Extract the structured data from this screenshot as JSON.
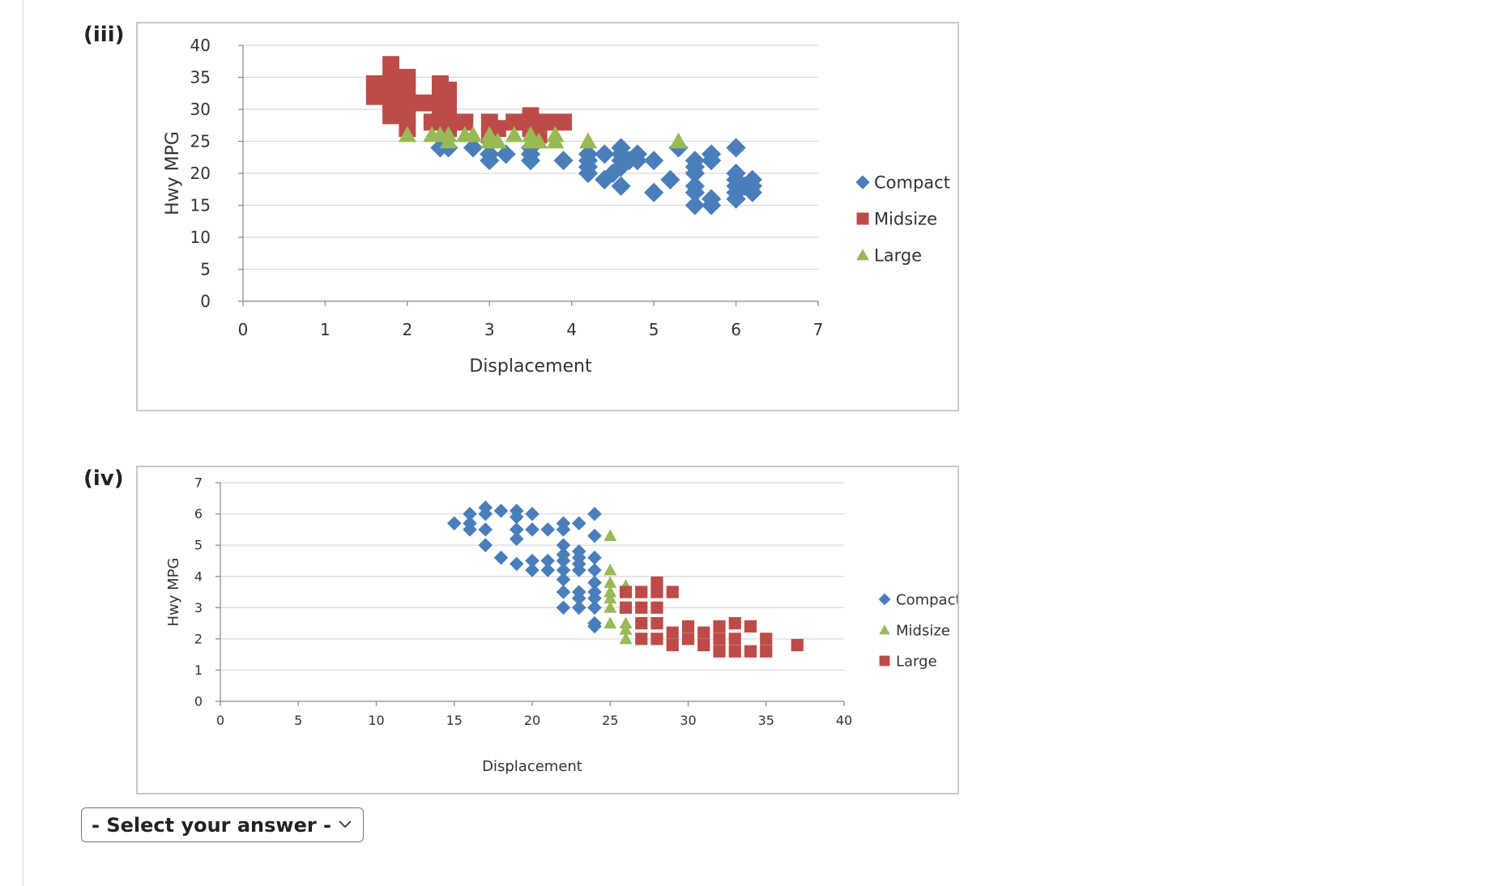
{
  "parts": [
    {
      "label": "(iii)"
    },
    {
      "label": "(iv)"
    }
  ],
  "answer_select": {
    "placeholder": "- Select your answer -",
    "icon": "chevron-down-icon"
  },
  "colors": {
    "compact": "#4a7ebb",
    "midsize_red": "#be4b48",
    "green": "#98b954",
    "grid": "#d9d9d9",
    "axis": "#868686"
  },
  "chart_data": [
    {
      "type": "scatter",
      "title": "",
      "xlabel": "Displacement",
      "ylabel": "Hwy MPG",
      "xlim": [
        0,
        7
      ],
      "ylim": [
        0,
        40
      ],
      "xticks": [
        "0",
        "1",
        "2",
        "3",
        "4",
        "5",
        "6",
        "7"
      ],
      "yticks": [
        "0",
        "5",
        "10",
        "15",
        "20",
        "25",
        "30",
        "35",
        "40"
      ],
      "legend_position": "right",
      "series": [
        {
          "name": "Compact",
          "marker": "diamond",
          "color": "#4a7ebb",
          "points": [
            [
              2.4,
              24
            ],
            [
              2.5,
              24
            ],
            [
              2.8,
              24
            ],
            [
              3.0,
              22
            ],
            [
              3.0,
              23
            ],
            [
              3.2,
              23
            ],
            [
              3.5,
              22
            ],
            [
              3.5,
              23
            ],
            [
              3.5,
              24
            ],
            [
              3.9,
              22
            ],
            [
              4.2,
              20
            ],
            [
              4.2,
              21
            ],
            [
              4.2,
              22
            ],
            [
              4.2,
              23
            ],
            [
              4.4,
              19
            ],
            [
              4.4,
              23
            ],
            [
              4.5,
              20
            ],
            [
              4.6,
              21
            ],
            [
              4.6,
              22
            ],
            [
              4.6,
              23
            ],
            [
              4.6,
              24
            ],
            [
              4.6,
              18
            ],
            [
              4.7,
              22
            ],
            [
              4.8,
              22
            ],
            [
              4.8,
              23
            ],
            [
              5.0,
              22
            ],
            [
              5.0,
              17
            ],
            [
              5.2,
              19
            ],
            [
              5.3,
              24
            ],
            [
              5.5,
              15
            ],
            [
              5.5,
              17
            ],
            [
              5.5,
              18
            ],
            [
              5.5,
              20
            ],
            [
              5.5,
              21
            ],
            [
              5.5,
              22
            ],
            [
              5.7,
              15
            ],
            [
              5.7,
              16
            ],
            [
              5.7,
              22
            ],
            [
              5.7,
              23
            ],
            [
              6.0,
              16
            ],
            [
              6.0,
              17
            ],
            [
              6.0,
              18
            ],
            [
              6.0,
              19
            ],
            [
              6.0,
              20
            ],
            [
              6.0,
              24
            ],
            [
              6.1,
              18
            ],
            [
              6.2,
              17
            ],
            [
              6.2,
              18
            ],
            [
              6.2,
              19
            ]
          ]
        },
        {
          "name": "Midsize",
          "marker": "square",
          "color": "#be4b48",
          "points": [
            [
              1.6,
              32
            ],
            [
              1.6,
              34
            ],
            [
              1.8,
              29
            ],
            [
              1.8,
              31
            ],
            [
              1.8,
              33
            ],
            [
              1.8,
              35
            ],
            [
              1.8,
              37
            ],
            [
              2.0,
              27
            ],
            [
              2.0,
              29
            ],
            [
              2.0,
              31
            ],
            [
              2.0,
              33
            ],
            [
              2.0,
              35
            ],
            [
              2.2,
              31
            ],
            [
              2.3,
              28
            ],
            [
              2.4,
              28
            ],
            [
              2.4,
              30
            ],
            [
              2.4,
              32
            ],
            [
              2.4,
              34
            ],
            [
              2.5,
              27
            ],
            [
              2.5,
              29
            ],
            [
              2.5,
              31
            ],
            [
              2.5,
              33
            ],
            [
              2.7,
              28
            ],
            [
              3.0,
              26
            ],
            [
              3.0,
              28
            ],
            [
              3.1,
              27
            ],
            [
              3.3,
              28
            ],
            [
              3.5,
              27
            ],
            [
              3.5,
              29
            ],
            [
              3.6,
              26
            ],
            [
              3.7,
              28
            ],
            [
              3.9,
              28
            ]
          ]
        },
        {
          "name": "Large",
          "marker": "triangle",
          "color": "#98b954",
          "points": [
            [
              2.0,
              26
            ],
            [
              2.3,
              26
            ],
            [
              2.4,
              26
            ],
            [
              2.5,
              25
            ],
            [
              2.5,
              26
            ],
            [
              2.7,
              26
            ],
            [
              2.8,
              26
            ],
            [
              3.0,
              25
            ],
            [
              3.0,
              26
            ],
            [
              3.1,
              25
            ],
            [
              3.3,
              26
            ],
            [
              3.5,
              25
            ],
            [
              3.5,
              26
            ],
            [
              3.6,
              25
            ],
            [
              3.8,
              25
            ],
            [
              3.8,
              26
            ],
            [
              4.2,
              25
            ],
            [
              5.3,
              25
            ]
          ]
        }
      ]
    },
    {
      "type": "scatter",
      "title": "",
      "xlabel": "Displacement",
      "ylabel": "Hwy MPG",
      "xlim": [
        0,
        40
      ],
      "ylim": [
        0,
        7
      ],
      "xticks": [
        "0",
        "5",
        "10",
        "15",
        "20",
        "25",
        "30",
        "35",
        "40"
      ],
      "yticks": [
        "0",
        "1",
        "2",
        "3",
        "4",
        "5",
        "6",
        "7"
      ],
      "legend_position": "right",
      "series": [
        {
          "name": "Compact",
          "marker": "diamond",
          "color": "#4a7ebb",
          "points": [
            [
              15,
              5.7
            ],
            [
              16,
              5.5
            ],
            [
              16,
              5.7
            ],
            [
              16,
              6.0
            ],
            [
              17,
              5.0
            ],
            [
              17,
              5.5
            ],
            [
              17,
              6.0
            ],
            [
              17,
              6.2
            ],
            [
              18,
              4.6
            ],
            [
              18,
              6.1
            ],
            [
              19,
              4.4
            ],
            [
              19,
              5.2
            ],
            [
              19,
              5.5
            ],
            [
              19,
              5.9
            ],
            [
              19,
              6.1
            ],
            [
              20,
              4.2
            ],
            [
              20,
              4.5
            ],
            [
              20,
              5.5
            ],
            [
              20,
              6.0
            ],
            [
              21,
              4.2
            ],
            [
              21,
              4.5
            ],
            [
              21,
              5.5
            ],
            [
              22,
              3.0
            ],
            [
              22,
              3.5
            ],
            [
              22,
              3.9
            ],
            [
              22,
              4.2
            ],
            [
              22,
              4.5
            ],
            [
              22,
              4.7
            ],
            [
              22,
              5.0
            ],
            [
              22,
              5.5
            ],
            [
              22,
              5.7
            ],
            [
              23,
              3.0
            ],
            [
              23,
              3.3
            ],
            [
              23,
              3.5
            ],
            [
              23,
              4.2
            ],
            [
              23,
              4.4
            ],
            [
              23,
              4.6
            ],
            [
              23,
              4.8
            ],
            [
              23,
              5.7
            ],
            [
              24,
              2.4
            ],
            [
              24,
              2.5
            ],
            [
              24,
              3.0
            ],
            [
              24,
              3.3
            ],
            [
              24,
              3.5
            ],
            [
              24,
              3.8
            ],
            [
              24,
              4.2
            ],
            [
              24,
              4.6
            ],
            [
              24,
              5.3
            ],
            [
              24,
              6.0
            ]
          ]
        },
        {
          "name": "Midsize",
          "marker": "triangle",
          "color": "#98b954",
          "points": [
            [
              25,
              2.5
            ],
            [
              25,
              3.0
            ],
            [
              25,
              3.3
            ],
            [
              25,
              3.5
            ],
            [
              25,
              3.8
            ],
            [
              25,
              4.2
            ],
            [
              25,
              5.3
            ],
            [
              26,
              2.0
            ],
            [
              26,
              2.3
            ],
            [
              26,
              2.5
            ],
            [
              26,
              3.0
            ],
            [
              26,
              3.5
            ],
            [
              26,
              3.7
            ]
          ]
        },
        {
          "name": "Large",
          "marker": "square",
          "color": "#be4b48",
          "points": [
            [
              26,
              3.0
            ],
            [
              26,
              3.5
            ],
            [
              27,
              2.0
            ],
            [
              27,
              2.5
            ],
            [
              27,
              3.0
            ],
            [
              27,
              3.5
            ],
            [
              28,
              2.0
            ],
            [
              28,
              2.5
            ],
            [
              28,
              3.0
            ],
            [
              28,
              3.5
            ],
            [
              28,
              3.8
            ],
            [
              29,
              1.8
            ],
            [
              29,
              2.2
            ],
            [
              29,
              3.5
            ],
            [
              30,
              2.0
            ],
            [
              30,
              2.4
            ],
            [
              31,
              1.8
            ],
            [
              31,
              2.2
            ],
            [
              32,
              1.6
            ],
            [
              32,
              2.0
            ],
            [
              32,
              2.4
            ],
            [
              33,
              1.6
            ],
            [
              33,
              2.0
            ],
            [
              33,
              2.5
            ],
            [
              34,
              1.6
            ],
            [
              34,
              2.4
            ],
            [
              35,
              1.6
            ],
            [
              35,
              2.0
            ],
            [
              37,
              1.8
            ]
          ]
        }
      ]
    }
  ]
}
